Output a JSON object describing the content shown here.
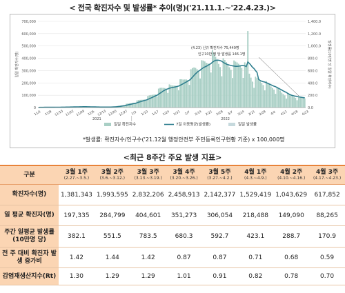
{
  "top_title": "< 전국 확진자수 및 발생률* 추이(명)('21.11.1.~'22.4.23.)>",
  "chart_data": {
    "type": "bar",
    "y_left_ticks": [
      "700,000",
      "600,000",
      "500,000",
      "400,000",
      "300,000",
      "200,000",
      "100,000",
      "0"
    ],
    "y_left_max": 700000,
    "y_right_ticks": [
      "1,400.0",
      "1,200.0",
      "1,000.0",
      "800.0",
      "600.0",
      "400.0",
      "200.0",
      "0.0"
    ],
    "y_right_max": 1400,
    "y_left_label": "일일 확진자수(명)",
    "y_right_label": "발생률(10만명 당 일일 확진자수)",
    "x_ticks": [
      "11/1",
      "11/8",
      "11/15",
      "11/22",
      "11/29",
      "12/6",
      "12/13",
      "12/20",
      "12/27",
      "1/3",
      "1/10",
      "1/17",
      "1/24",
      "1/31",
      "2/7",
      "2/14",
      "2/21",
      "2/28",
      "3/7",
      "3/14",
      "3/21",
      "3/28",
      "4/4",
      "4/11",
      "4/18",
      "4/23"
    ],
    "year_labels": [
      "2021",
      "2022"
    ],
    "series": [
      {
        "name": "일일 확진자수",
        "color": "#a9cfc5",
        "weekly_anchor_values": [
          1600,
          2200,
          2400,
          3000,
          3900,
          4300,
          5600,
          7100,
          6200,
          4700,
          3800,
          3400,
          4200,
          6600,
          14500,
          25500,
          35000,
          50600,
          63600,
          84300,
          108700,
          142600,
          166000,
          162400,
          190400,
          210500,
          252200,
          310100,
          329800,
          353400,
          407300,
          363600,
          346900,
          333800,
          332300,
          355500,
          298100,
          225800,
          210000,
          196400,
          168200,
          154400,
          118200,
          96500,
          89000,
          79100,
          75500
        ],
        "peak_value": 621200
      },
      {
        "name": "7일 이동평균(발생률)",
        "color": "#2f7f8f"
      },
      {
        "name": "일일 발생률",
        "color": "#c6d9dd"
      }
    ],
    "annotation_lines": [
      "(4.23) 신규 확진자수 75,449명",
      "인구10만 명 당 발생률 146.1명"
    ]
  },
  "footnote": "*발생률: 확진자수/인구수('21.12월 행정안전부 주민등록인구현황 기준) x 100,000명",
  "sub_title": "<최근 8주간 주요 발생 지표>",
  "table": {
    "corner": "구분",
    "weeks": [
      {
        "label": "3월 1주",
        "range": "(2.27.~3.5.)"
      },
      {
        "label": "3월 2주",
        "range": "(3.6.~3.12.)"
      },
      {
        "label": "3월 3주",
        "range": "(3.13.~3.19.)"
      },
      {
        "label": "3월 4주",
        "range": "(3.20.~3.26.)"
      },
      {
        "label": "3월 5주",
        "range": "(3.27.~4.2.)"
      },
      {
        "label": "4월 1주",
        "range": "(4.3.~4.9.)"
      },
      {
        "label": "4월 2주",
        "range": "(4.10.~4.16.)"
      },
      {
        "label": "4월 3주",
        "range": "(4.17.~4.23.)"
      }
    ],
    "rows": [
      {
        "label": "확진자수(명)",
        "values": [
          "1,381,343",
          "1,993,595",
          "2,832,206",
          "2,458,913",
          "2,142,377",
          "1,529,419",
          "1,043,629",
          "617,852"
        ]
      },
      {
        "label": "일 평균 확진자(명)",
        "values": [
          "197,335",
          "284,799",
          "404,601",
          "351,273",
          "306,054",
          "218,488",
          "149,090",
          "88,265"
        ]
      },
      {
        "label": "주간 일평균 발생률(10만명 당)",
        "values": [
          "382.1",
          "551.5",
          "783.5",
          "680.3",
          "592.7",
          "423.1",
          "288.7",
          "170.9"
        ]
      },
      {
        "label": "전 주 대비 확진자 발생 증가비",
        "values": [
          "1.42",
          "1.44",
          "1.42",
          "0.87",
          "0.87",
          "0.71",
          "0.68",
          "0.59"
        ]
      },
      {
        "label": "감염재생산지수(Rt)",
        "values": [
          "1.30",
          "1.29",
          "1.29",
          "1.01",
          "0.91",
          "0.82",
          "0.78",
          "0.70"
        ]
      }
    ]
  }
}
